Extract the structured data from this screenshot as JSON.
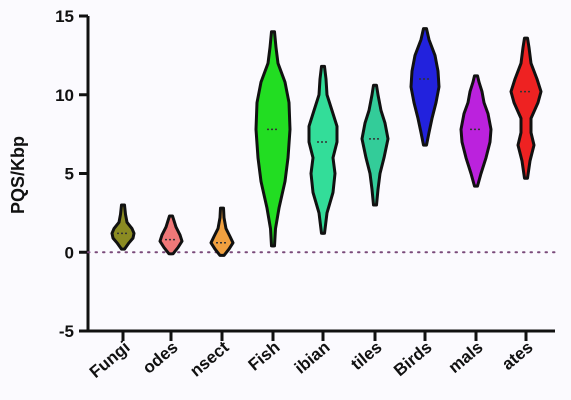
{
  "chart_data": {
    "type": "violin",
    "title": "",
    "xlabel": "",
    "ylabel": "PQS/Kbp",
    "ylim": [
      -5,
      15
    ],
    "yticks": [
      "-5",
      "0",
      "5",
      "10",
      "15"
    ],
    "reference_line": 0,
    "categories": [
      "Fungi",
      "Nematodes",
      "Insect",
      "Fish",
      "Amphibian",
      "Reptiles",
      "Birds",
      "Mammals",
      "Primates"
    ],
    "visible_labels": [
      "Fungi",
      "odes",
      "nsect",
      "Fish",
      "ibian",
      "tiles",
      "Birds",
      "mals",
      "ates"
    ],
    "colors": [
      "#8b8b22",
      "#f07878",
      "#f0a040",
      "#22dd22",
      "#33dd99",
      "#33cc99",
      "#2222dd",
      "#bb22dd",
      "#ee2222"
    ],
    "series": [
      {
        "category": "Fungi",
        "min": 0.2,
        "max": 3.0,
        "median": 1.2
      },
      {
        "category": "Nematodes",
        "min": -0.1,
        "max": 2.3,
        "median": 0.8
      },
      {
        "category": "Insect",
        "min": -0.2,
        "max": 2.8,
        "median": 0.6
      },
      {
        "category": "Fish",
        "min": 0.4,
        "max": 14.0,
        "median": 7.8
      },
      {
        "category": "Amphibian",
        "min": 1.2,
        "max": 11.8,
        "median": 7.0
      },
      {
        "category": "Reptiles",
        "min": 3.0,
        "max": 10.6,
        "median": 7.2
      },
      {
        "category": "Birds",
        "min": 6.8,
        "max": 14.2,
        "median": 11.0
      },
      {
        "category": "Mammals",
        "min": 4.2,
        "max": 11.2,
        "median": 7.8
      },
      {
        "category": "Primates",
        "min": 4.7,
        "max": 13.6,
        "median": 10.2
      }
    ]
  }
}
